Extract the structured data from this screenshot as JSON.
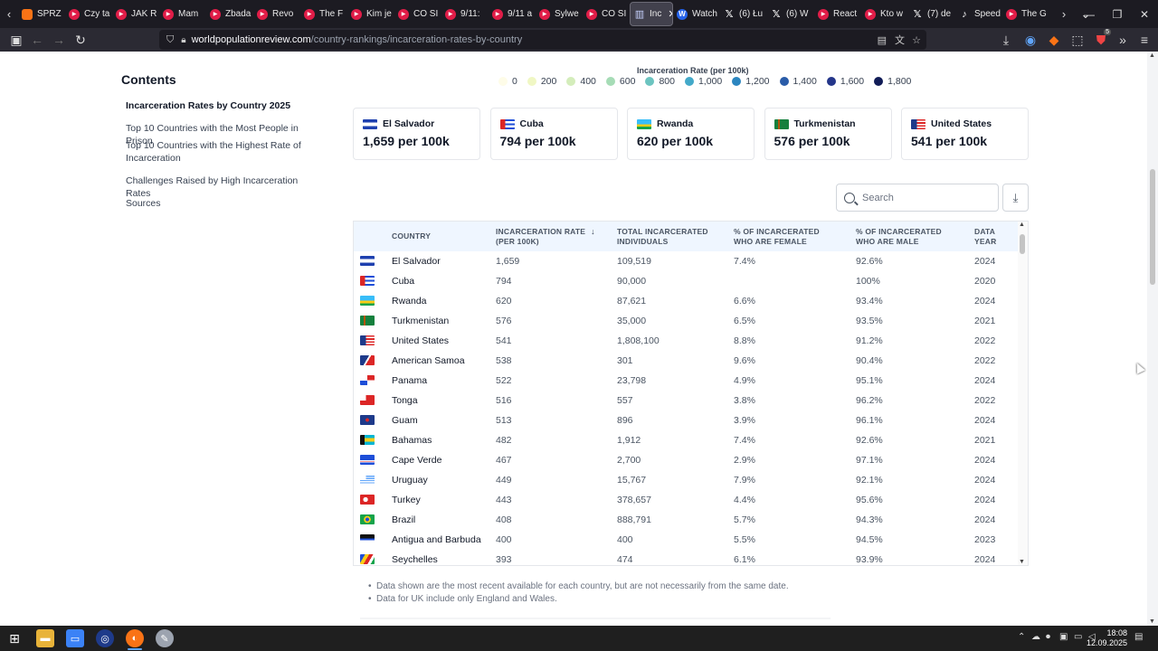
{
  "browser": {
    "tabs": [
      {
        "label": "SPRZ",
        "icon": "tab-generic-icon",
        "kind": "other"
      },
      {
        "label": "Czy ta",
        "icon": "youtube-icon",
        "kind": "yt"
      },
      {
        "label": "JAK R",
        "icon": "youtube-icon",
        "kind": "yt"
      },
      {
        "label": "Mam",
        "icon": "youtube-icon",
        "kind": "yt"
      },
      {
        "label": "Zbada",
        "icon": "youtube-icon",
        "kind": "yt"
      },
      {
        "label": "Revo",
        "icon": "youtube-icon",
        "kind": "yt"
      },
      {
        "label": "The F",
        "icon": "youtube-icon",
        "kind": "yt"
      },
      {
        "label": "Kim je",
        "icon": "youtube-icon",
        "kind": "yt"
      },
      {
        "label": "CO SI",
        "icon": "youtube-icon",
        "kind": "yt"
      },
      {
        "label": "9/11:",
        "icon": "youtube-icon",
        "kind": "yt"
      },
      {
        "label": "9/11 a",
        "icon": "youtube-icon",
        "kind": "yt"
      },
      {
        "label": "Sylwe",
        "icon": "youtube-icon",
        "kind": "yt"
      },
      {
        "label": "CO SI",
        "icon": "youtube-icon",
        "kind": "yt"
      },
      {
        "label": "Inc",
        "icon": "chart-icon",
        "kind": "active-ic",
        "active": true
      },
      {
        "label": "Watch",
        "icon": "web-icon",
        "kind": "wp"
      },
      {
        "label": "(6) Łu",
        "icon": "x-icon",
        "kind": "x"
      },
      {
        "label": "(6) W",
        "icon": "x-icon",
        "kind": "x"
      },
      {
        "label": "React",
        "icon": "youtube-icon",
        "kind": "yt"
      },
      {
        "label": "Kto w",
        "icon": "youtube-icon",
        "kind": "yt"
      },
      {
        "label": "(7) de",
        "icon": "x-icon",
        "kind": "x"
      },
      {
        "label": "Speed",
        "icon": "tiktok-icon",
        "kind": "tt"
      },
      {
        "label": "The G",
        "icon": "youtube-icon",
        "kind": "yt"
      }
    ],
    "url_host": "worldpopulationreview.com",
    "url_path": "/country-rankings/incarceration-rates-by-country",
    "extension_badge": "5"
  },
  "toc": {
    "title": "Contents",
    "items": [
      {
        "label": "Incarceration Rates by Country 2025",
        "active": true
      },
      {
        "label": "Top 10 Countries with the Most People in Prison",
        "active": false
      },
      {
        "label": "Top 10 Countries with the Highest Rate of Incarceration",
        "active": false
      },
      {
        "label": "Challenges Raised by High Incarceration Rates",
        "active": false
      },
      {
        "label": "Sources",
        "active": false
      }
    ]
  },
  "legend": {
    "title": "Incarceration Rate (per 100k)",
    "items": [
      {
        "label": "0",
        "color": "#fefce8"
      },
      {
        "label": "200",
        "color": "#f0f7c4"
      },
      {
        "label": "400",
        "color": "#d4edbb"
      },
      {
        "label": "600",
        "color": "#a6dcb6"
      },
      {
        "label": "800",
        "color": "#6cc4c0"
      },
      {
        "label": "1,000",
        "color": "#43a9c9"
      },
      {
        "label": "1,200",
        "color": "#2c86c0"
      },
      {
        "label": "1,400",
        "color": "#2a5ca8"
      },
      {
        "label": "1,600",
        "color": "#24368a"
      },
      {
        "label": "1,800",
        "color": "#111c57"
      }
    ]
  },
  "cards": [
    {
      "country": "El Salvador",
      "value": "1,659 per 100k",
      "flag": "sv"
    },
    {
      "country": "Cuba",
      "value": "794 per 100k",
      "flag": "cu"
    },
    {
      "country": "Rwanda",
      "value": "620 per 100k",
      "flag": "rw"
    },
    {
      "country": "Turkmenistan",
      "value": "576 per 100k",
      "flag": "tm"
    },
    {
      "country": "United States",
      "value": "541 per 100k",
      "flag": "us"
    }
  ],
  "search": {
    "placeholder": "Search"
  },
  "table": {
    "headers": {
      "country": "COUNTRY",
      "rate_1": "INCARCERATION RATE",
      "rate_2": "(PER 100K)",
      "total_1": "TOTAL INCARCERATED",
      "total_2": "INDIVIDUALS",
      "female_1": "% OF INCARCERATED",
      "female_2": "WHO ARE FEMALE",
      "male_1": "% OF INCARCERATED",
      "male_2": "WHO ARE MALE",
      "year_1": "DATA",
      "year_2": "YEAR"
    },
    "rows": [
      {
        "country": "El Salvador",
        "rate": "1,659",
        "total": "109,519",
        "female": "7.4%",
        "male": "92.6%",
        "year": "2024",
        "flag": "sv"
      },
      {
        "country": "Cuba",
        "rate": "794",
        "total": "90,000",
        "female": "",
        "male": "100%",
        "year": "2020",
        "flag": "cu"
      },
      {
        "country": "Rwanda",
        "rate": "620",
        "total": "87,621",
        "female": "6.6%",
        "male": "93.4%",
        "year": "2024",
        "flag": "rw"
      },
      {
        "country": "Turkmenistan",
        "rate": "576",
        "total": "35,000",
        "female": "6.5%",
        "male": "93.5%",
        "year": "2021",
        "flag": "tm"
      },
      {
        "country": "United States",
        "rate": "541",
        "total": "1,808,100",
        "female": "8.8%",
        "male": "91.2%",
        "year": "2022",
        "flag": "us"
      },
      {
        "country": "American Samoa",
        "rate": "538",
        "total": "301",
        "female": "9.6%",
        "male": "90.4%",
        "year": "2022",
        "flag": "as"
      },
      {
        "country": "Panama",
        "rate": "522",
        "total": "23,798",
        "female": "4.9%",
        "male": "95.1%",
        "year": "2024",
        "flag": "pa"
      },
      {
        "country": "Tonga",
        "rate": "516",
        "total": "557",
        "female": "3.8%",
        "male": "96.2%",
        "year": "2022",
        "flag": "to"
      },
      {
        "country": "Guam",
        "rate": "513",
        "total": "896",
        "female": "3.9%",
        "male": "96.1%",
        "year": "2024",
        "flag": "gu"
      },
      {
        "country": "Bahamas",
        "rate": "482",
        "total": "1,912",
        "female": "7.4%",
        "male": "92.6%",
        "year": "2021",
        "flag": "bs"
      },
      {
        "country": "Cape Verde",
        "rate": "467",
        "total": "2,700",
        "female": "2.9%",
        "male": "97.1%",
        "year": "2024",
        "flag": "cv"
      },
      {
        "country": "Uruguay",
        "rate": "449",
        "total": "15,767",
        "female": "7.9%",
        "male": "92.1%",
        "year": "2024",
        "flag": "uy"
      },
      {
        "country": "Turkey",
        "rate": "443",
        "total": "378,657",
        "female": "4.4%",
        "male": "95.6%",
        "year": "2024",
        "flag": "tr"
      },
      {
        "country": "Brazil",
        "rate": "408",
        "total": "888,791",
        "female": "5.7%",
        "male": "94.3%",
        "year": "2024",
        "flag": "br"
      },
      {
        "country": "Antigua and Barbuda",
        "rate": "400",
        "total": "400",
        "female": "5.5%",
        "male": "94.5%",
        "year": "2023",
        "flag": "ag"
      },
      {
        "country": "Seychelles",
        "rate": "393",
        "total": "474",
        "female": "6.1%",
        "male": "93.9%",
        "year": "2024",
        "flag": "sc"
      }
    ]
  },
  "notes": [
    "Data shown are the most recent available for each country, but are not necessarily from the same date.",
    "Data for UK include only England and Wales."
  ],
  "taskbar": {
    "time": "18:08",
    "date": "12.09.2025"
  }
}
